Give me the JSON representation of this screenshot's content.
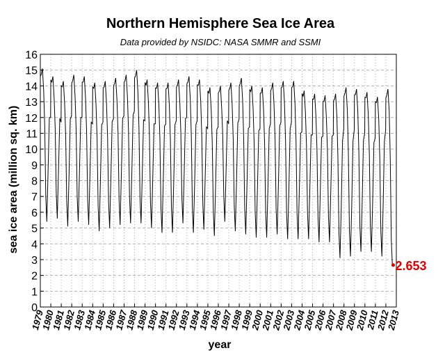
{
  "chart_data": {
    "type": "line",
    "title": "Northern Hemisphere Sea Ice Area",
    "subtitle": "Data provided by NSIDC: NASA SMMR and SSMI",
    "xlabel": "year",
    "ylabel": "sea ice area (million sq. km)",
    "xlim": [
      1979,
      2013
    ],
    "ylim": [
      0,
      16
    ],
    "x_ticks": [
      "1979",
      "1980",
      "1981",
      "1982",
      "1983",
      "1984",
      "1985",
      "1986",
      "1987",
      "1988",
      "1989",
      "1990",
      "1991",
      "1992",
      "1993",
      "1994",
      "1995",
      "1996",
      "1997",
      "1998",
      "1999",
      "2000",
      "2001",
      "2002",
      "2003",
      "2004",
      "2005",
      "2006",
      "2007",
      "2008",
      "2009",
      "2010",
      "2011",
      "2012",
      "2013"
    ],
    "y_ticks": [
      0,
      1,
      2,
      3,
      4,
      5,
      6,
      7,
      8,
      9,
      10,
      11,
      12,
      13,
      14,
      15,
      16
    ],
    "grid": true,
    "series": [
      {
        "values_by_year": [
          {
            "year": 1979,
            "max": 15.1,
            "min": 5.4
          },
          {
            "year": 1980,
            "max": 14.6,
            "min": 5.6
          },
          {
            "year": 1981,
            "max": 14.3,
            "min": 5.1
          },
          {
            "year": 1982,
            "max": 14.7,
            "min": 5.4
          },
          {
            "year": 1983,
            "max": 14.6,
            "min": 5.2
          },
          {
            "year": 1984,
            "max": 14.2,
            "min": 4.8
          },
          {
            "year": 1985,
            "max": 14.3,
            "min": 5.0
          },
          {
            "year": 1986,
            "max": 14.5,
            "min": 5.2
          },
          {
            "year": 1987,
            "max": 14.7,
            "min": 5.3
          },
          {
            "year": 1988,
            "max": 15.0,
            "min": 5.3
          },
          {
            "year": 1989,
            "max": 14.4,
            "min": 5.0
          },
          {
            "year": 1990,
            "max": 14.2,
            "min": 4.7
          },
          {
            "year": 1991,
            "max": 14.2,
            "min": 4.7
          },
          {
            "year": 1992,
            "max": 14.4,
            "min": 5.3
          },
          {
            "year": 1993,
            "max": 14.6,
            "min": 4.7
          },
          {
            "year": 1994,
            "max": 14.4,
            "min": 4.9
          },
          {
            "year": 1995,
            "max": 13.9,
            "min": 4.5
          },
          {
            "year": 1996,
            "max": 14.0,
            "min": 5.4
          },
          {
            "year": 1997,
            "max": 14.2,
            "min": 4.8
          },
          {
            "year": 1998,
            "max": 14.5,
            "min": 4.6
          },
          {
            "year": 1999,
            "max": 14.0,
            "min": 4.4
          },
          {
            "year": 2000,
            "max": 13.9,
            "min": 4.4
          },
          {
            "year": 2001,
            "max": 14.2,
            "min": 4.6
          },
          {
            "year": 2002,
            "max": 14.3,
            "min": 4.3
          },
          {
            "year": 2003,
            "max": 14.3,
            "min": 4.3
          },
          {
            "year": 2004,
            "max": 13.7,
            "min": 4.3
          },
          {
            "year": 2005,
            "max": 13.5,
            "min": 4.1
          },
          {
            "year": 2006,
            "max": 13.4,
            "min": 4.1
          },
          {
            "year": 2007,
            "max": 13.5,
            "min": 3.1
          },
          {
            "year": 2008,
            "max": 13.9,
            "min": 3.2
          },
          {
            "year": 2009,
            "max": 13.8,
            "min": 3.5
          },
          {
            "year": 2010,
            "max": 13.6,
            "min": 3.5
          },
          {
            "year": 2011,
            "max": 13.3,
            "min": 3.2
          },
          {
            "year": 2012,
            "max": 13.8,
            "min": 2.653
          }
        ]
      }
    ],
    "annotation": {
      "text": "2.653",
      "x": 2012.7,
      "y": 2.653,
      "color": "#e00000"
    },
    "colors": {
      "line": "#000000",
      "grid": "#b0b0b0",
      "annotation": "#e00000"
    }
  }
}
